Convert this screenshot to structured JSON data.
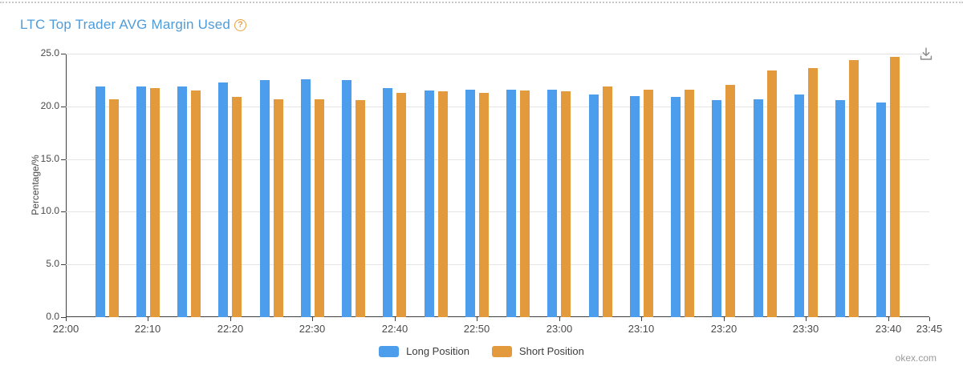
{
  "header": {
    "title": "LTC Top Trader AVG Margin Used",
    "help_symbol": "?"
  },
  "chart_data": {
    "type": "bar",
    "title": "LTC Top Trader AVG Margin Used",
    "xlabel": "",
    "ylabel": "Percentage/%",
    "ylim": [
      0,
      25
    ],
    "ytick_labels": [
      "0.0",
      "5.0",
      "10.0",
      "15.0",
      "20.0",
      "25.0"
    ],
    "xtick_labels": [
      "22:00",
      "22:10",
      "22:20",
      "22:30",
      "22:40",
      "22:50",
      "23:00",
      "23:10",
      "23:20",
      "23:30",
      "23:40",
      "23:45"
    ],
    "categories": [
      "22:05",
      "22:10",
      "22:15",
      "22:20",
      "22:25",
      "22:30",
      "22:35",
      "22:40",
      "22:45",
      "22:50",
      "22:55",
      "23:00",
      "23:05",
      "23:10",
      "23:15",
      "23:20",
      "23:25",
      "23:30",
      "23:35",
      "23:40"
    ],
    "series": [
      {
        "name": "Long Position",
        "color": "#4c9eec",
        "values": [
          21.9,
          21.9,
          21.9,
          22.3,
          22.5,
          22.6,
          22.5,
          21.7,
          21.5,
          21.6,
          21.6,
          21.6,
          21.1,
          21.0,
          20.9,
          20.6,
          20.7,
          21.1,
          20.6,
          20.4
        ]
      },
      {
        "name": "Short Position",
        "color": "#e29a3c",
        "values": [
          20.7,
          21.7,
          21.5,
          20.9,
          20.7,
          20.7,
          20.6,
          21.3,
          21.4,
          21.3,
          21.5,
          21.4,
          21.9,
          21.6,
          21.6,
          22.0,
          23.4,
          23.6,
          24.4,
          24.7
        ]
      }
    ],
    "legend_position": "bottom",
    "grid": true,
    "axis_color": "#3f3f3f",
    "gridline_color": "#e4e4e4"
  },
  "footer": {
    "watermark": "okex.com"
  }
}
